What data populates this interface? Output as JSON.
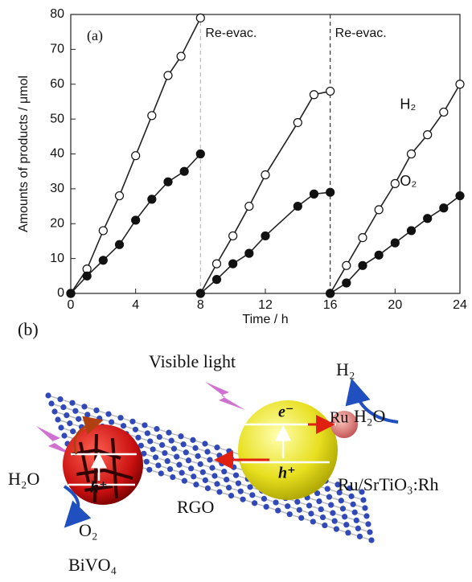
{
  "chart_data": {
    "type": "scatter",
    "panel_label": "(a)",
    "x_label": "Time / h",
    "y_label": "Amounts of products / μmol",
    "xlim": [
      0,
      24
    ],
    "ylim": [
      0,
      80
    ],
    "xticks": [
      0,
      4,
      8,
      12,
      16,
      20,
      24
    ],
    "yticks": [
      0,
      10,
      20,
      30,
      40,
      50,
      60,
      70,
      80
    ],
    "vlines": [
      {
        "x": 8,
        "label": "Re-evac.",
        "color": "#bbbbbb"
      },
      {
        "x": 16,
        "label": "Re-evac.",
        "color": "#333333"
      }
    ],
    "annotations": [
      {
        "text": "H₂",
        "x": 20.3,
        "y": 54
      },
      {
        "text": "O₂",
        "x": 20.3,
        "y": 32
      }
    ],
    "series": [
      {
        "marker": "open",
        "x": [
          0,
          1,
          2,
          3,
          4,
          5,
          6,
          6.8,
          8
        ],
        "values": [
          0,
          7,
          18,
          28,
          39.5,
          51,
          62.5,
          68,
          79
        ]
      },
      {
        "marker": "filled",
        "x": [
          0,
          1,
          2,
          3,
          4,
          5,
          6,
          7,
          8
        ],
        "values": [
          0,
          5,
          9.5,
          14,
          21,
          27,
          32,
          35,
          40
        ]
      },
      {
        "marker": "open",
        "x": [
          8,
          9,
          10,
          11,
          12,
          14,
          15,
          16
        ],
        "values": [
          0,
          8.5,
          16.5,
          25,
          34,
          49,
          57,
          58
        ]
      },
      {
        "marker": "filled",
        "x": [
          8,
          9,
          10,
          11,
          12,
          14,
          15,
          16
        ],
        "values": [
          0,
          4,
          8.5,
          11.5,
          16.5,
          25,
          28.5,
          29
        ]
      },
      {
        "marker": "open",
        "x": [
          16,
          17,
          18,
          19,
          20,
          21,
          22,
          23,
          24
        ],
        "values": [
          0,
          8,
          16,
          24,
          31.5,
          40,
          45.5,
          52,
          60
        ]
      },
      {
        "marker": "filled",
        "x": [
          16,
          17,
          18,
          19,
          20,
          21,
          22,
          23,
          24
        ],
        "values": [
          0,
          3,
          8,
          11,
          14.5,
          18,
          21.5,
          24.5,
          28
        ]
      }
    ]
  },
  "diagram": {
    "panel_label": "(b)",
    "visible_light": "Visible light",
    "h2": "H₂",
    "h2o_right": "H₂O",
    "electron": "e⁻",
    "ru": "Ru",
    "hole_right": "h⁺",
    "photocatalyst": "Ru/SrTiO₃:Rh",
    "rgo": "RGO",
    "h2o_left": "H₂O",
    "hole_left": "h⁺",
    "o2": "O₂",
    "bivo4": "BiVO₄"
  }
}
